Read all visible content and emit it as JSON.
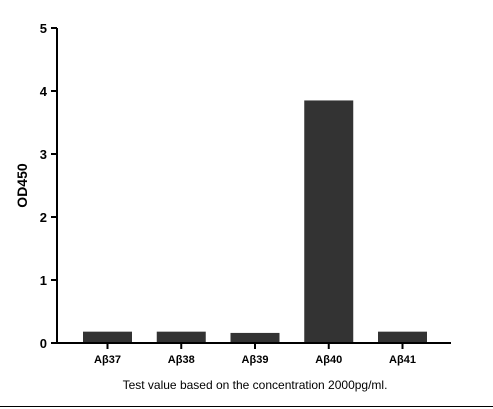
{
  "chart_data": {
    "type": "bar",
    "categories": [
      "Aβ37",
      "Aβ38",
      "Aβ39",
      "Aβ40",
      "Aβ41"
    ],
    "values": [
      0.18,
      0.18,
      0.16,
      3.85,
      0.18
    ],
    "title": "",
    "xlabel": "Test value based on the concentration 2000pg/ml.",
    "ylabel": "OD450",
    "ylim": [
      0,
      5
    ],
    "yticks": [
      "0",
      "1",
      "2",
      "3",
      "4",
      "5"
    ],
    "grid": false,
    "bar_color": "#333333"
  }
}
